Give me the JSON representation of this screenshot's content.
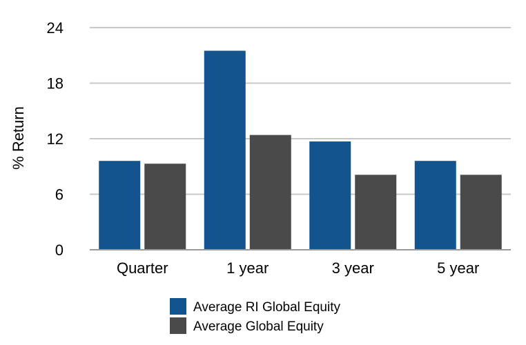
{
  "chart_data": {
    "type": "bar",
    "title": "",
    "xlabel": "",
    "ylabel": "% Return",
    "ylim": [
      0,
      24
    ],
    "yticks": [
      "0",
      "6",
      "12",
      "18",
      "24"
    ],
    "categories": [
      "Quarter",
      "1 year",
      "3 year",
      "5 year"
    ],
    "grid": true,
    "legend": "bottom",
    "series": [
      {
        "name": "Average RI Global Equity",
        "color": "#13548f",
        "values": [
          9.6,
          21.5,
          11.7,
          9.6
        ]
      },
      {
        "name": "Average Global Equity",
        "color": "#4a4a4a",
        "values": [
          9.3,
          12.4,
          8.1,
          8.1
        ]
      }
    ]
  }
}
